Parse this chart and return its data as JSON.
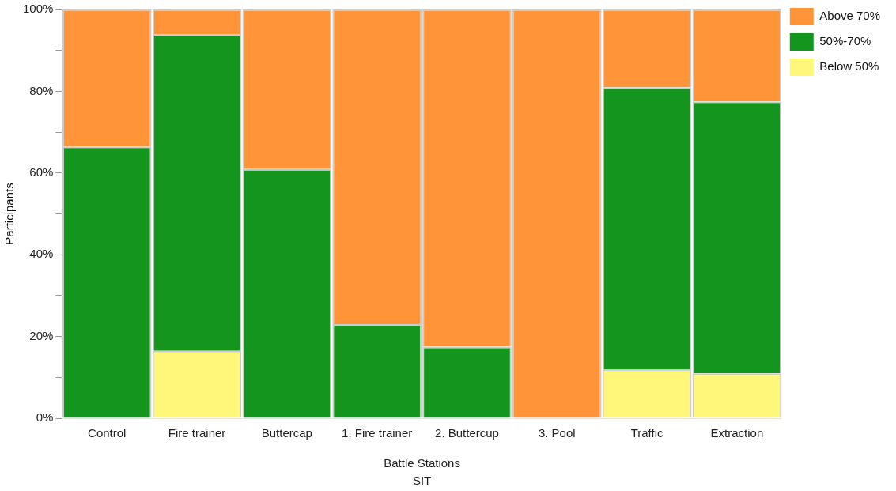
{
  "chart_data": {
    "type": "bar",
    "stacked": true,
    "ylabel": "Participants",
    "categories": [
      "Control",
      "Fire trainer",
      "Buttercap",
      "1. Fire trainer",
      "2. Buttercup",
      "3. Pool",
      "Traffic",
      "Extraction"
    ],
    "series": [
      {
        "name": "Below 50%",
        "color": "#fff77a",
        "values": [
          null,
          16.5,
          null,
          null,
          null,
          null,
          12,
          11
        ]
      },
      {
        "name": "50%-70%",
        "color": "#14961e",
        "values": [
          66.5,
          77.5,
          61,
          23,
          17.5,
          null,
          69,
          66.5
        ]
      },
      {
        "name": "Above 70%",
        "color": "#ff9438",
        "values": [
          33.5,
          6,
          39,
          77,
          82.5,
          100,
          19,
          22.5
        ]
      }
    ],
    "ylim": [
      0,
      100
    ],
    "yticks": [
      {
        "value": 0,
        "label": "0%"
      },
      {
        "value": 10,
        "label": null
      },
      {
        "value": 20,
        "label": "20%"
      },
      {
        "value": 30,
        "label": null
      },
      {
        "value": 40,
        "label": "40%"
      },
      {
        "value": 50,
        "label": null
      },
      {
        "value": 60,
        "label": "60%"
      },
      {
        "value": 70,
        "label": null
      },
      {
        "value": 80,
        "label": "80%"
      },
      {
        "value": 90,
        "label": null
      },
      {
        "value": 100,
        "label": "100%"
      }
    ],
    "annotations": [
      "Battle Stations",
      "SIT"
    ],
    "grid": false,
    "legend": "top right"
  }
}
